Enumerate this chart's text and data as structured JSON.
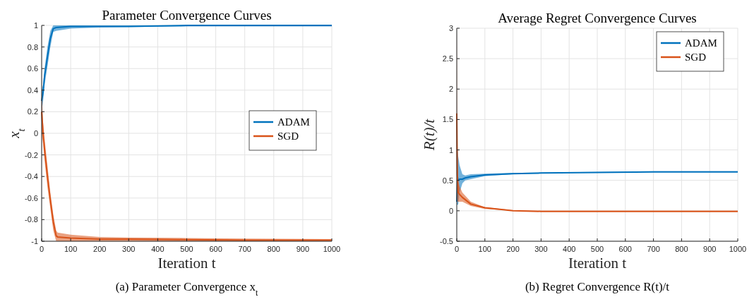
{
  "chart_data": [
    {
      "type": "line",
      "title": "Parameter Convergence Curves",
      "xlabel": "Iteration t",
      "ylabel": "x$_{t}$",
      "annotations": [
        "(a) Parameter Convergence x$_{t}$"
      ],
      "xlim": [
        0,
        1000
      ],
      "xticks": [
        0,
        100,
        200,
        300,
        400,
        500,
        600,
        700,
        800,
        900,
        1000
      ],
      "ylim": [
        -1,
        1
      ],
      "yticks": [
        -1,
        -0.8,
        -0.6,
        -0.4,
        -0.2,
        0,
        0.2,
        0.4,
        0.6,
        0.8,
        1
      ],
      "grid": true,
      "legend": "right",
      "series": [
        {
          "name": "ADAM",
          "color": "#0072bd",
          "x": [
            0,
            5,
            10,
            20,
            30,
            40,
            50,
            100,
            200,
            300,
            500,
            700,
            1000
          ],
          "values": [
            0.3,
            0.38,
            0.53,
            0.71,
            0.88,
            0.97,
            0.98,
            0.99,
            0.99,
            0.99,
            1,
            1,
            1
          ],
          "lower": [
            0.2,
            0.3,
            0.45,
            0.62,
            0.8,
            0.94,
            0.95,
            0.97,
            0.98,
            0.985,
            0.99,
            0.99,
            0.99
          ],
          "upper": [
            0.4,
            0.45,
            0.6,
            0.8,
            0.95,
            1,
            1,
            1,
            1,
            1,
            1,
            1,
            1
          ]
        },
        {
          "name": "SGD",
          "color": "#d95319",
          "x": [
            0,
            5,
            10,
            20,
            30,
            40,
            50,
            55,
            100,
            200,
            300,
            500,
            700,
            1000
          ],
          "values": [
            0.2,
            0,
            -0.15,
            -0.4,
            -0.62,
            -0.82,
            -0.95,
            -0.96,
            -0.97,
            -0.98,
            -0.98,
            -0.985,
            -0.99,
            -0.99
          ],
          "lower": [
            0,
            -0.1,
            -0.25,
            -0.5,
            -0.7,
            -0.9,
            -1,
            -1,
            -1,
            -1,
            -1,
            -1,
            -1,
            -1
          ],
          "upper": [
            0.4,
            0.1,
            -0.05,
            -0.3,
            -0.55,
            -0.75,
            -0.9,
            -0.92,
            -0.94,
            -0.96,
            -0.965,
            -0.97,
            -0.975,
            -0.98
          ]
        }
      ]
    },
    {
      "type": "line",
      "title": "Average Regret Convergence Curves",
      "xlabel": "Iteration t",
      "ylabel": "R(t)/t",
      "annotations": [
        "(b) Regret Convergence R(t)/t"
      ],
      "xlim": [
        0,
        1000
      ],
      "xticks": [
        0,
        100,
        200,
        300,
        400,
        500,
        600,
        700,
        800,
        900,
        1000
      ],
      "ylim": [
        -0.5,
        3
      ],
      "yticks": [
        -0.5,
        0,
        0.5,
        1,
        1.5,
        2,
        2.5,
        3
      ],
      "grid": true,
      "legend": "top right",
      "series": [
        {
          "name": "ADAM",
          "color": "#0072bd",
          "x": [
            0,
            3,
            5,
            10,
            20,
            30,
            50,
            100,
            200,
            300,
            500,
            700,
            1000
          ],
          "values": [
            0.15,
            0.55,
            0.5,
            0.52,
            0.52,
            0.54,
            0.56,
            0.59,
            0.61,
            0.62,
            0.63,
            0.64,
            0.64
          ],
          "lower": [
            0.1,
            0.1,
            0.1,
            0.3,
            0.45,
            0.5,
            0.52,
            0.57,
            0.6,
            0.62,
            0.63,
            0.64,
            0.64
          ],
          "upper": [
            0.2,
            1.05,
            0.9,
            0.75,
            0.6,
            0.58,
            0.6,
            0.61,
            0.62,
            0.63,
            0.64,
            0.65,
            0.65
          ]
        },
        {
          "name": "SGD",
          "color": "#d95319",
          "x": [
            0,
            2,
            5,
            10,
            20,
            50,
            100,
            200,
            300,
            500,
            700,
            1000
          ],
          "values": [
            1.6,
            0.6,
            0.3,
            0.27,
            0.22,
            0.11,
            0.05,
            0,
            -0.01,
            -0.01,
            -0.01,
            -0.01
          ],
          "lower": [
            0.2,
            0.15,
            0.15,
            0.15,
            0.15,
            0.08,
            0.03,
            0,
            -0.01,
            -0.01,
            -0.01,
            -0.01
          ],
          "upper": [
            3,
            1,
            0.5,
            0.4,
            0.3,
            0.15,
            0.06,
            0.01,
            0,
            0,
            0,
            0
          ]
        }
      ]
    }
  ]
}
